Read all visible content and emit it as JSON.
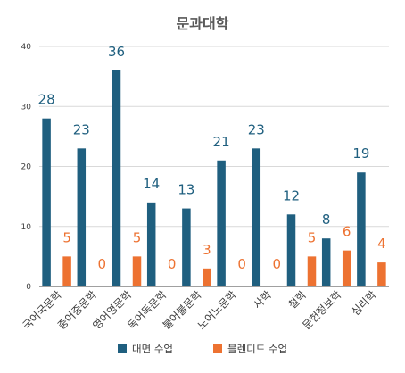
{
  "chart_data": {
    "type": "bar",
    "title": "문과대학",
    "categories": [
      "국어국문학",
      "중어중문학",
      "영어영문학",
      "독어독문학",
      "불어불문학",
      "노어노문학",
      "사학",
      "철학",
      "문헌정보학",
      "심리학"
    ],
    "series": [
      {
        "name": "대면 수업",
        "values": [
          28,
          23,
          36,
          14,
          13,
          21,
          23,
          12,
          8,
          19
        ],
        "color": "#1f5f7f",
        "label_color": "#1f5f7f"
      },
      {
        "name": "블렌디드 수업",
        "values": [
          5,
          0,
          5,
          0,
          3,
          0,
          0,
          5,
          6,
          4
        ],
        "color": "#ed7231",
        "label_color": "#ed7231"
      }
    ],
    "ylim": [
      0,
      40
    ],
    "yticks": [
      0,
      10,
      20,
      30,
      40
    ],
    "xlabel": "",
    "ylabel": "",
    "grid": true,
    "legend_position": "bottom"
  }
}
